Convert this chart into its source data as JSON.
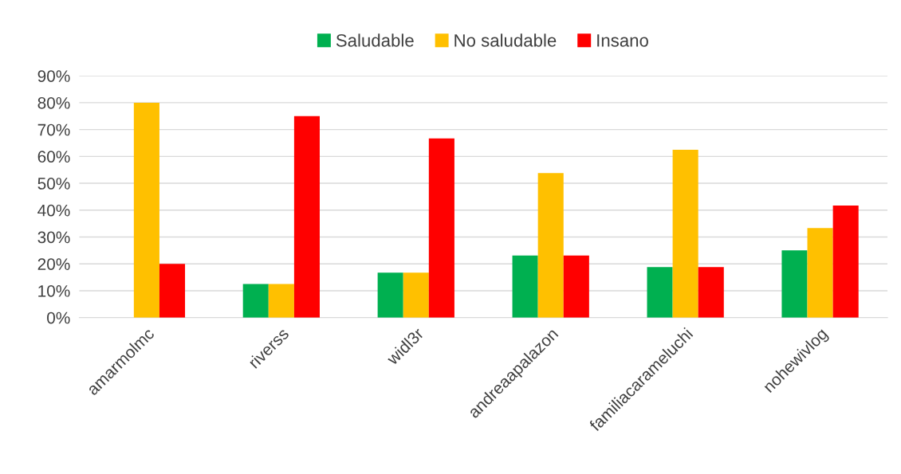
{
  "chart_data": {
    "type": "bar",
    "categories": [
      "amarmolmc",
      "riverss",
      "widl3r",
      "andreaapalazon",
      "familiacarameluchi",
      "nohewivlog"
    ],
    "series": [
      {
        "name": "Saludable",
        "color": "#00b050",
        "values": [
          0,
          12.5,
          16.7,
          23.1,
          18.8,
          25
        ]
      },
      {
        "name": "No saludable",
        "color": "#ffc000",
        "values": [
          80,
          12.5,
          16.7,
          53.8,
          62.5,
          33.3
        ]
      },
      {
        "name": "Insano",
        "color": "#ff0000",
        "values": [
          20,
          75,
          66.7,
          23.1,
          18.8,
          41.7
        ]
      }
    ],
    "ylim": [
      0,
      90
    ],
    "yticks": [
      {
        "value": 0,
        "label": "0%"
      },
      {
        "value": 10,
        "label": "10%"
      },
      {
        "value": 20,
        "label": "20%"
      },
      {
        "value": 30,
        "label": "30%"
      },
      {
        "value": 40,
        "label": "40%"
      },
      {
        "value": 50,
        "label": "50%"
      },
      {
        "value": 60,
        "label": "60%"
      },
      {
        "value": 70,
        "label": "70%"
      },
      {
        "value": 80,
        "label": "80%"
      },
      {
        "value": 90,
        "label": "90%"
      }
    ],
    "grid": "y",
    "legend": "top"
  }
}
